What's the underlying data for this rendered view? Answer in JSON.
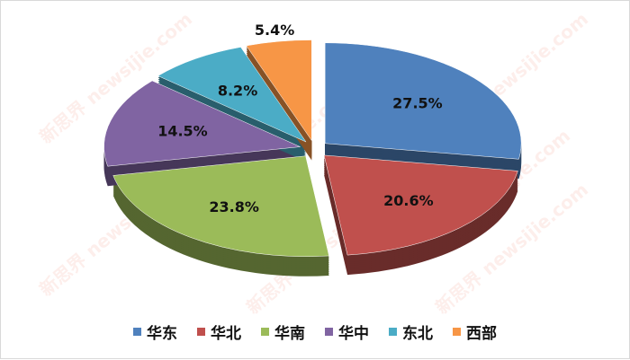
{
  "chart_data": {
    "type": "pie",
    "style": "3d-exploded",
    "categories": [
      "华东",
      "华北",
      "华南",
      "华中",
      "东北",
      "西部"
    ],
    "values": [
      27.5,
      20.6,
      23.8,
      14.5,
      8.2,
      5.4
    ],
    "labels": [
      "27.5%",
      "20.6%",
      "23.8%",
      "14.5%",
      "8.2%",
      "5.4%"
    ],
    "colors": [
      "#4f81bd",
      "#c0504d",
      "#9bbb59",
      "#8064a2",
      "#4bacc6",
      "#f79646"
    ],
    "legend_position": "bottom"
  },
  "watermark": "新思界 newsijie.com"
}
